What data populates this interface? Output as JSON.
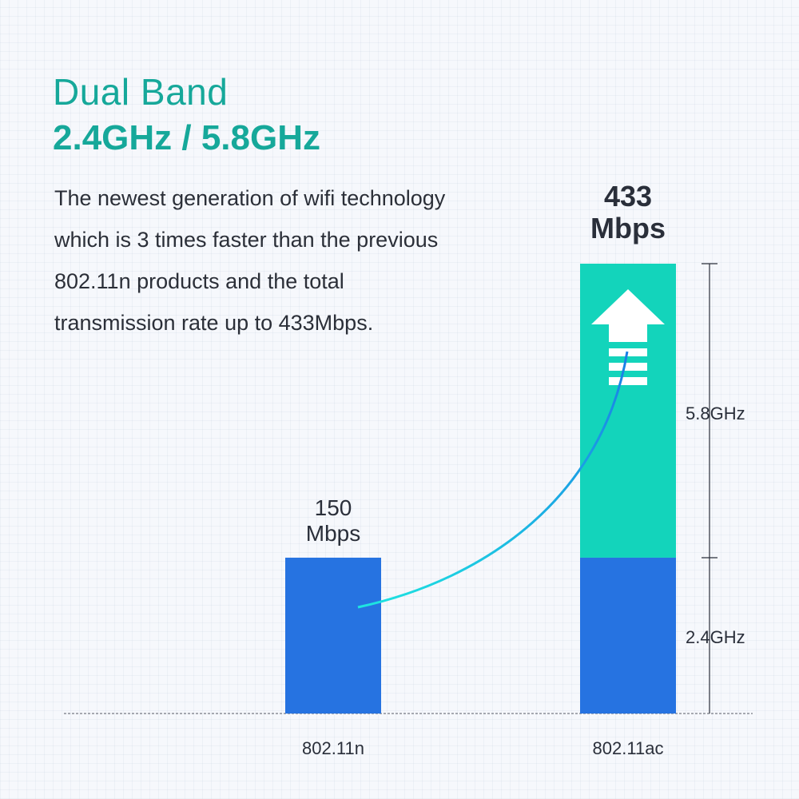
{
  "header": {
    "title": "Dual Band",
    "subtitle": "2.4GHz / 5.8GHz"
  },
  "description": [
    "The newest generation of wifi technology",
    "which is 3 times faster than the previous",
    "802.11n products and the total",
    "transmission rate up to 433Mbps."
  ],
  "colors": {
    "accent": "#16a89a",
    "band_2_4": "#2673e1",
    "band_5_8": "#13d4bb"
  },
  "chart_data": {
    "type": "bar",
    "stacked": true,
    "categories": [
      "802.11n",
      "802.11ac"
    ],
    "series": [
      {
        "name": "2.4GHz",
        "values": [
          150,
          150
        ]
      },
      {
        "name": "5.8GHz",
        "values": [
          0,
          283
        ]
      }
    ],
    "totals": [
      150,
      433
    ],
    "value_labels": [
      {
        "value": "150",
        "unit": "Mbps"
      },
      {
        "value": "433",
        "unit": "Mbps"
      }
    ],
    "ylim": [
      0,
      433
    ],
    "grid": false,
    "annotations": [
      "curved arrow from 802.11n bar to 802.11ac bar",
      "upward arrow icon"
    ]
  }
}
